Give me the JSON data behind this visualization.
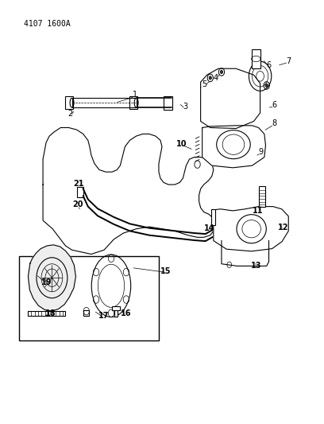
{
  "title": "",
  "part_number": "4107 1600A",
  "background_color": "#ffffff",
  "line_color": "#000000",
  "label_color": "#000000",
  "font_size_part_num": 7,
  "font_size_labels": 7,
  "figsize": [
    4.08,
    5.33
  ],
  "dpi": 100
}
